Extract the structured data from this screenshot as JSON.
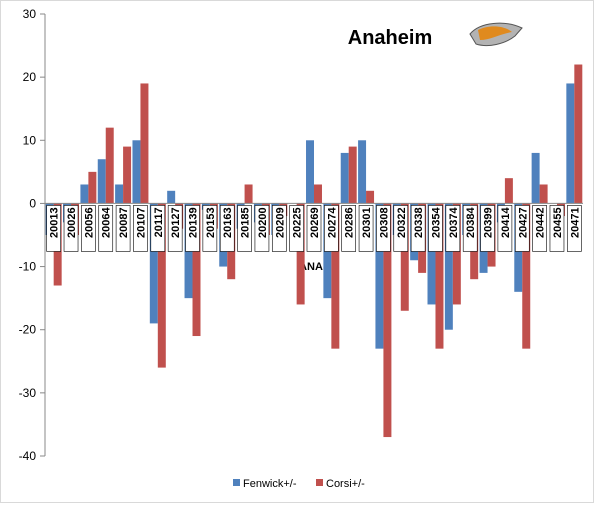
{
  "chart_data": {
    "type": "bar",
    "title": "Anaheim",
    "annotation": "ANA",
    "categories": [
      "20013",
      "20026",
      "20056",
      "20064",
      "20087",
      "20107",
      "20117",
      "20127",
      "20139",
      "20153",
      "20163",
      "20185",
      "20200",
      "20209",
      "20225",
      "20269",
      "20274",
      "20286",
      "20301",
      "20308",
      "20322",
      "20338",
      "20354",
      "20374",
      "20384",
      "20399",
      "20414",
      "20427",
      "20442",
      "20455",
      "20471"
    ],
    "series": [
      {
        "name": "Fenwick+/-",
        "color": "#4f81bd",
        "values": [
          -5,
          -3,
          3,
          7,
          3,
          10,
          -19,
          2,
          -15,
          -1,
          -10,
          -4,
          -3,
          -5,
          0,
          10,
          -15,
          8,
          10,
          -23,
          -5,
          -9,
          -16,
          -20,
          -5,
          -11,
          -3,
          -14,
          8,
          0,
          19
        ]
      },
      {
        "name": "Corsi+/-",
        "color": "#c0504d",
        "values": [
          -13,
          -5,
          5,
          12,
          9,
          19,
          -26,
          -4,
          -21,
          -4,
          -12,
          3,
          -5,
          -2,
          -16,
          3,
          -23,
          9,
          2,
          -37,
          -17,
          -11,
          -23,
          -16,
          -12,
          -10,
          4,
          -23,
          3,
          -2,
          22
        ]
      }
    ],
    "ylim": [
      -40,
      30
    ],
    "yticks": [
      30,
      20,
      10,
      0,
      -10,
      -20,
      -30,
      -40
    ],
    "legend": "bottom"
  }
}
